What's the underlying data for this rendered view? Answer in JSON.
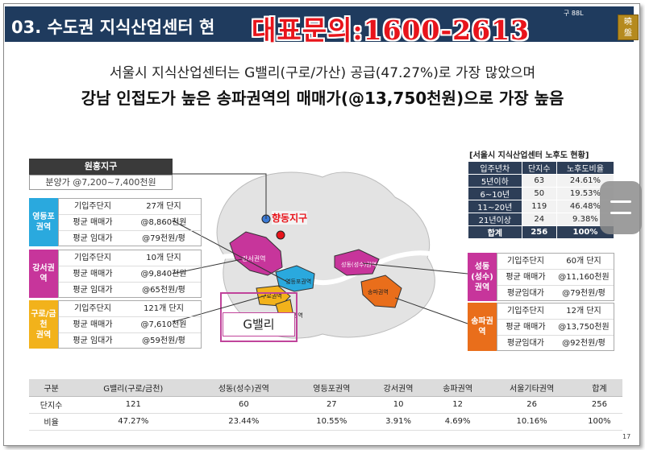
{
  "header": {
    "title": "03. 수도권 지식산업센터 현",
    "subtitle": "구 88L",
    "phone": "대표문의:1600-2613",
    "seal_chars": [
      "曉",
      "盤"
    ]
  },
  "summary": {
    "line1": "서울시 지식산업센터는 G밸리(구로/가산) 공급(47.27%)로 가장 많았으며",
    "line2": "강남 인접도가 높은 송파권역의 매매가(@13,750천원)으로 가장 높음"
  },
  "wonheung": {
    "title": "원흥지구",
    "detail": "분양가 @7,200~7,400천원"
  },
  "map": {
    "hyangdong": "향동지구",
    "gvalley": "G밸리",
    "districts": [
      "강서권역",
      "영등포권역",
      "구로권역",
      "금천권역",
      "성동(성수)권역",
      "송파권역"
    ]
  },
  "regions": [
    {
      "id": "yeongdeungpo",
      "tag": "영등포\n권역",
      "color": "#2aa9de",
      "rows": [
        [
          "기입주단지",
          "27개 단지"
        ],
        [
          "평균 매매가",
          "@8,860천원"
        ],
        [
          "평균 임대가",
          "@79천원/평"
        ]
      ]
    },
    {
      "id": "gangseo",
      "tag": "강서권역",
      "color": "#c7359b",
      "rows": [
        [
          "기입주단지",
          "10개 단지"
        ],
        [
          "평균 매매가",
          "@9,840천원"
        ],
        [
          "평균 임대가",
          "@65천원/평"
        ]
      ]
    },
    {
      "id": "guro-geumcheon",
      "tag": "구로/금천\n권역",
      "color": "#f2b21b",
      "rows": [
        [
          "기입주단지",
          "121개 단지"
        ],
        [
          "평균 매매가",
          "@7,610천원"
        ],
        [
          "평균 임대가",
          "@59천원/평"
        ]
      ]
    },
    {
      "id": "seongdong",
      "tag": "성동(성수)\n권역",
      "color": "#c7359b",
      "rows": [
        [
          "기입주단지",
          "60개 단지"
        ],
        [
          "평균 매매가",
          "@11,160천원"
        ],
        [
          "평균임대가",
          "@79천원/평"
        ]
      ]
    },
    {
      "id": "songpa",
      "tag": "송파권역",
      "color": "#e96e1b",
      "rows": [
        [
          "기입주단지",
          "12개 단지"
        ],
        [
          "평균 매매가",
          "@13,750천원"
        ],
        [
          "평균임대가",
          "@92천원/평"
        ]
      ]
    }
  ],
  "age_table": {
    "title": "[서울시 지식산업센터 노후도 현황]",
    "headers": [
      "입주년차",
      "단지수",
      "노후도비율"
    ],
    "rows": [
      [
        "5년이하",
        "63",
        "24.61%"
      ],
      [
        "6~10년",
        "50",
        "19.53%"
      ],
      [
        "11~20년",
        "119",
        "46.48%"
      ],
      [
        "21년이상",
        "24",
        "9.38%"
      ]
    ],
    "total": [
      "합계",
      "256",
      "100%"
    ]
  },
  "summary_table": {
    "headers": [
      "구분",
      "G밸리(구로/금천)",
      "성동(성수)권역",
      "영등포권역",
      "강서권역",
      "송파권역",
      "서울기타권역",
      "합계"
    ],
    "rows": [
      [
        "단지수",
        "121",
        "60",
        "27",
        "10",
        "12",
        "26",
        "256"
      ],
      [
        "비율",
        "47.27%",
        "23.44%",
        "10.55%",
        "3.91%",
        "4.69%",
        "10.16%",
        "100%"
      ]
    ]
  },
  "page_number": "17"
}
